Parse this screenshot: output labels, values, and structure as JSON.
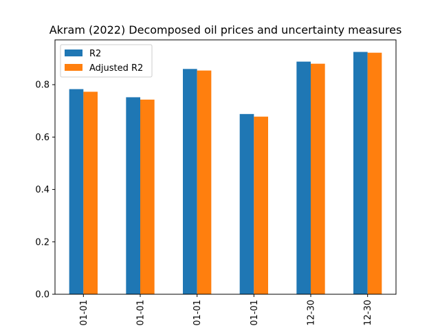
{
  "chart_data": {
    "type": "bar",
    "title": "Akram (2022) Decomposed oil prices and uncertainty measures",
    "xlabel": "",
    "ylabel": "",
    "categories": [
      "01-01",
      "01-01",
      "01-01",
      "01-01",
      "12-30",
      "12-30"
    ],
    "series": [
      {
        "name": "R2",
        "color": "#1f77b4",
        "values": [
          0.783,
          0.752,
          0.86,
          0.688,
          0.888,
          0.925
        ]
      },
      {
        "name": "Adjusted R2",
        "color": "#ff7f0e",
        "values": [
          0.773,
          0.743,
          0.854,
          0.678,
          0.88,
          0.922
        ]
      }
    ],
    "ylim": [
      0,
      0.971
    ],
    "yticks": [
      0.0,
      0.2,
      0.4,
      0.6,
      0.8
    ],
    "ytick_labels": [
      "0.0",
      "0.2",
      "0.4",
      "0.6",
      "0.8"
    ],
    "legend_position": "upper-left",
    "grid": false
  }
}
